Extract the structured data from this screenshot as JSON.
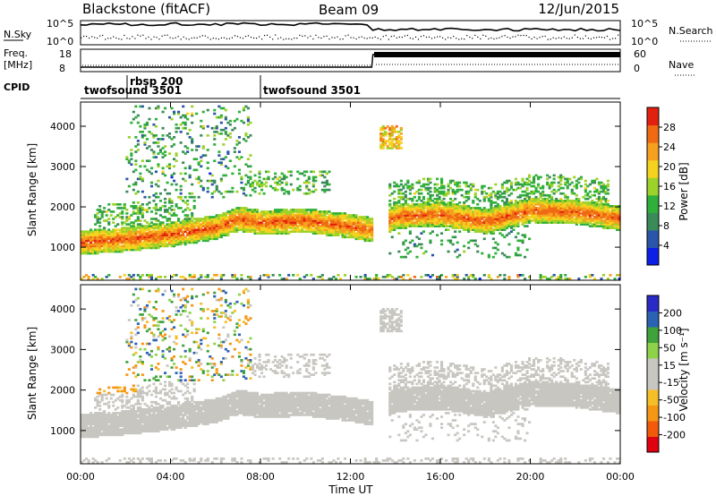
{
  "header": {
    "station": "Blackstone  (fitACF)",
    "beam": "Beam 09",
    "date": "12/Jun/2015"
  },
  "top_panel": {
    "nsky_label": "N.Sky",
    "nsearch_label": "N.Search",
    "freq_label_1": "Freq.",
    "freq_label_2": "[MHz]",
    "nave_label": "Nave",
    "cpid_label": "CPID",
    "count_ticks": [
      "10^5",
      "10^0"
    ],
    "freq_ticks": [
      "18",
      "8"
    ],
    "nave_ticks": [
      "60",
      "0"
    ],
    "cpid_segments": [
      {
        "name": "twofsound 3501",
        "start_hour": 0,
        "end_hour": 7.6
      },
      {
        "name": "rbsp 200",
        "start_hour": 1.6,
        "end_hour": 1.6
      },
      {
        "name": "twofsound 3501",
        "start_hour": 7.6,
        "end_hour": 24
      }
    ]
  },
  "axes": {
    "ylabel": "Slant Range [km]",
    "xlabel": "Time UT",
    "x_ticks": [
      "00:00",
      "04:00",
      "08:00",
      "12:00",
      "16:00",
      "20:00",
      "00:00"
    ],
    "y_ticks": [
      "1000",
      "2000",
      "3000",
      "4000"
    ]
  },
  "colorbars": {
    "power": {
      "label": "Power [dB]",
      "ticks": [
        "28",
        "24",
        "20",
        "16",
        "12",
        "8",
        "4"
      ]
    },
    "velocity": {
      "label": "Velocity [m s⁻¹]",
      "ticks": [
        "200",
        "100",
        "50",
        "15",
        "-15",
        "-50",
        "-100",
        "-200"
      ]
    }
  },
  "chart_data": [
    {
      "type": "heatmap",
      "title": "Power",
      "xlabel": "Time UT",
      "ylabel": "Slant Range [km]",
      "xlim": [
        0,
        24
      ],
      "ylim": [
        180,
        4600
      ],
      "colorbar_label": "Power [dB]",
      "colorbar_range": [
        0,
        32
      ],
      "main_echo_band": {
        "hours": [
          0,
          2,
          4,
          6,
          7,
          8,
          10,
          12,
          13,
          14,
          16,
          18,
          20,
          22,
          24
        ],
        "range_km": [
          1100,
          1180,
          1300,
          1480,
          1680,
          1600,
          1640,
          1500,
          1400,
          1750,
          1800,
          1620,
          1900,
          1850,
          1700
        ]
      }
    },
    {
      "type": "heatmap",
      "title": "Velocity",
      "xlabel": "Time UT",
      "ylabel": "Slant Range [km]",
      "xlim": [
        0,
        24
      ],
      "ylim": [
        180,
        4600
      ],
      "colorbar_label": "Velocity [m s-1]",
      "colorbar_range": [
        -250,
        250
      ]
    }
  ],
  "colors": {
    "power_scale": [
      "#0b1fe6",
      "#2a55a8",
      "#3a8a5a",
      "#2fb03a",
      "#9cd22a",
      "#f5d21e",
      "#f5a01e",
      "#f06a14",
      "#e22010"
    ],
    "velocity_scale": [
      "#e00010",
      "#f05a0a",
      "#f59614",
      "#f5be28",
      "#c8c6c0",
      "#c8c6c0",
      "#8ed24a",
      "#3fa23a",
      "#2c62b4",
      "#2a2ac6"
    ],
    "ground_scatter": "#c8c6c0"
  }
}
